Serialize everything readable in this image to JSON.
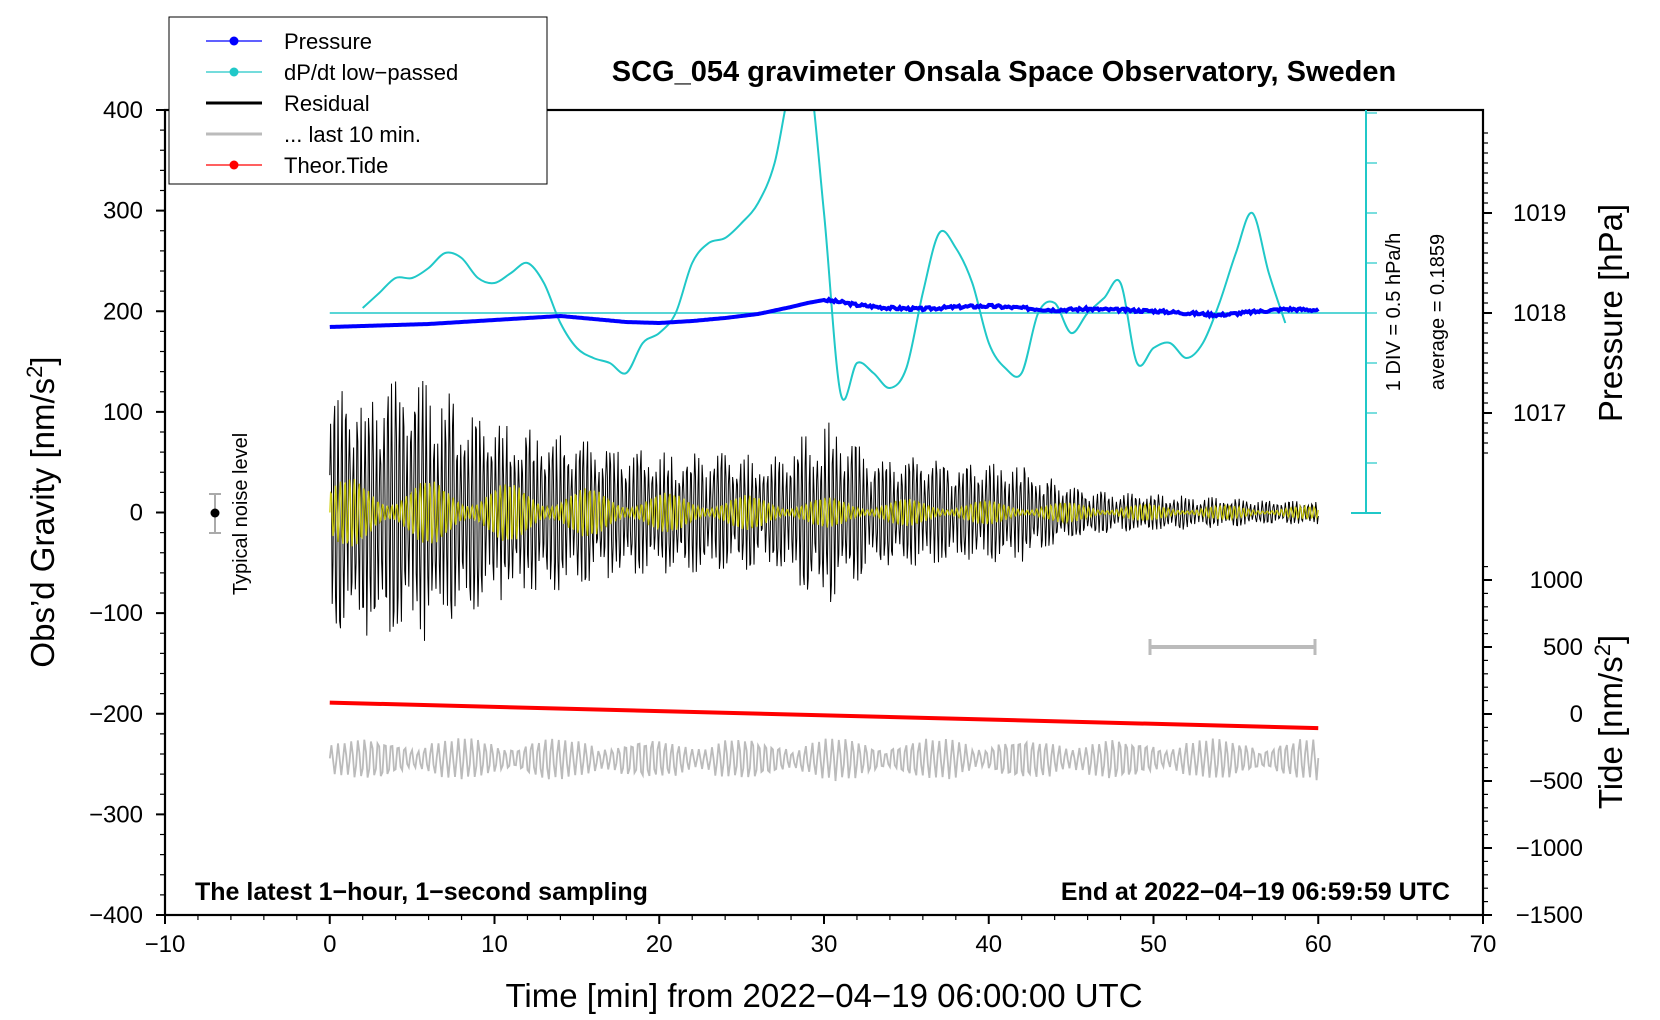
{
  "chart_data": {
    "type": "line",
    "title": "SCG_054 gravimeter Onsala Space Observatory, Sweden",
    "xlabel": "Time [min] from 2022−04−19 06:00:00 UTC",
    "xlim": [
      -10,
      70
    ],
    "x_ticks": [
      "−10",
      "0",
      "10",
      "20",
      "30",
      "40",
      "50",
      "60",
      "70"
    ],
    "ylabel_left": "Obs’d Gravity [nm/s",
    "ylim_left": [
      -400,
      400
    ],
    "y_ticks_left": [
      "400",
      "300",
      "200",
      "100",
      "0",
      "−100",
      "−200",
      "−300",
      "−400"
    ],
    "ylabel_pressure": "Pressure [hPa]",
    "pressure_ticks": [
      "1019",
      "1018",
      "1017"
    ],
    "ylabel_tide": "Tide [nm/s",
    "tide_ticks": [
      "1000",
      "500",
      "0",
      "−500",
      "−1000",
      "−1500"
    ],
    "superscript": "2",
    "closing": "]",
    "bottom_left_note": "The latest 1−hour, 1−second sampling",
    "bottom_right_note": "End at 2022−04−19 06:59:59 UTC",
    "noise_label": "Typical noise level",
    "div_label": "1 DIV = 0.5 hPa/h",
    "average_label": "average = 0.1859",
    "legend": [
      {
        "label": "Pressure",
        "color": "#0000ff",
        "marker": true
      },
      {
        "label": "dP/dt low−passed",
        "color": "#20c8c8",
        "marker": true
      },
      {
        "label": "Residual",
        "color": "#000000",
        "marker": false
      },
      {
        "label": "... last 10 min.",
        "color": "#bbbbbb",
        "marker": false
      },
      {
        "label": "Theor.Tide",
        "color": "#ff0000",
        "marker": true
      }
    ],
    "series": [
      {
        "name": "Pressure",
        "axis": "pressure_hPa",
        "x": [
          0,
          2,
          4,
          6,
          8,
          10,
          12,
          14,
          16,
          18,
          20,
          22,
          24,
          26,
          28,
          29,
          30,
          31,
          32,
          34,
          36,
          38,
          40,
          42,
          44,
          46,
          48,
          50,
          52,
          54,
          56,
          58,
          60
        ],
        "values": [
          1017.86,
          1017.87,
          1017.88,
          1017.89,
          1017.91,
          1017.93,
          1017.95,
          1017.97,
          1017.94,
          1017.91,
          1017.9,
          1017.92,
          1017.95,
          1017.99,
          1018.06,
          1018.1,
          1018.13,
          1018.11,
          1018.08,
          1018.05,
          1018.04,
          1018.06,
          1018.07,
          1018.05,
          1018.03,
          1018.04,
          1018.03,
          1018.02,
          1018.0,
          1017.98,
          1018.01,
          1018.04,
          1018.03
        ],
        "color": "#0000ff"
      },
      {
        "name": "dP/dt low-passed",
        "axis": "dPdt_hPa_per_h",
        "x": [
          2,
          3,
          4,
          5,
          6,
          7,
          8,
          9,
          10,
          11,
          12,
          13,
          14,
          15,
          16,
          17,
          18,
          19,
          20,
          21,
          22,
          23,
          24,
          25,
          26,
          27,
          28,
          29,
          30,
          31,
          32,
          33,
          34,
          35,
          36,
          37,
          38,
          39,
          40,
          41,
          42,
          43,
          44,
          45,
          46,
          47,
          48,
          49,
          50,
          51,
          52,
          53,
          54,
          55,
          56,
          57,
          58
        ],
        "values": [
          0.05,
          0.2,
          0.35,
          0.35,
          0.45,
          0.6,
          0.55,
          0.35,
          0.3,
          0.4,
          0.5,
          0.3,
          -0.1,
          -0.35,
          -0.45,
          -0.5,
          -0.6,
          -0.3,
          -0.2,
          0.0,
          0.5,
          0.7,
          0.75,
          0.9,
          1.1,
          1.5,
          2.3,
          2.5,
          1.0,
          -0.8,
          -0.5,
          -0.6,
          -0.75,
          -0.55,
          0.2,
          0.8,
          0.65,
          0.3,
          -0.3,
          -0.55,
          -0.6,
          0.0,
          0.1,
          -0.2,
          0.0,
          0.15,
          0.3,
          -0.5,
          -0.35,
          -0.3,
          -0.45,
          -0.3,
          0.1,
          0.6,
          1.0,
          0.4,
          -0.1
        ],
        "color": "#20c8c8"
      },
      {
        "name": "Residual",
        "color": "#000000",
        "x": [
          0,
          3,
          6,
          9,
          12,
          15,
          18,
          21,
          24,
          27,
          30,
          33,
          36,
          39,
          42,
          45,
          48,
          51,
          54,
          57,
          60
        ],
        "amplitude": [
          120,
          130,
          135,
          95,
          85,
          75,
          65,
          60,
          60,
          55,
          95,
          55,
          55,
          50,
          50,
          25,
          20,
          18,
          15,
          12,
          12
        ]
      },
      {
        "name": "Residual (band-passed)",
        "color": "#cccc00",
        "x": [
          0,
          10,
          20,
          30,
          40,
          50,
          60
        ],
        "amplitude": [
          35,
          30,
          20,
          15,
          12,
          8,
          6
        ]
      },
      {
        "name": "... last 10 min.",
        "color": "#bbbbbb",
        "x_range": [
          0,
          60
        ],
        "offset_nm_s2": -245,
        "amplitude": 20
      },
      {
        "name": "Theor.Tide",
        "axis": "tide_nm_s2",
        "x": [
          0,
          60
        ],
        "values": [
          85,
          -105
        ],
        "color": "#ff0000"
      }
    ],
    "pressure_ref_line_hPa": 1018,
    "noise_level_nm_s2": 20,
    "grid": false
  }
}
